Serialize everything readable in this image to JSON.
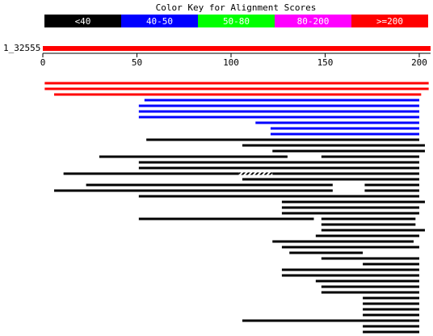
{
  "chart_data": {
    "type": "alignment",
    "title": "Color Key for Alignment Scores",
    "legend": [
      {
        "label": "<40",
        "color": "#000000"
      },
      {
        "label": "40-50",
        "color": "#0000ff"
      },
      {
        "label": "50-80",
        "color": "#00ff00"
      },
      {
        "label": "80-200",
        "color": "#ff00ff"
      },
      {
        "label": ">=200",
        "color": "#ff0000"
      }
    ],
    "query": {
      "name": "1_32555",
      "range": [
        0,
        206
      ],
      "color": "#ff0000"
    },
    "xlim": [
      0,
      206
    ],
    "xticks": [
      0,
      50,
      100,
      150,
      200
    ],
    "hits": [
      {
        "color": "#ff0000",
        "segments": [
          [
            1,
            205
          ]
        ]
      },
      {
        "color": "#ff0000",
        "segments": [
          [
            1,
            205
          ]
        ]
      },
      {
        "color": "#ff0000",
        "segments": [
          [
            6,
            201
          ]
        ]
      },
      {
        "color": "#0000ff",
        "segments": [
          [
            54,
            200
          ]
        ]
      },
      {
        "color": "#0000ff",
        "segments": [
          [
            51,
            200
          ]
        ]
      },
      {
        "color": "#0000ff",
        "segments": [
          [
            51,
            200
          ]
        ]
      },
      {
        "color": "#0000ff",
        "segments": [
          [
            51,
            200
          ]
        ]
      },
      {
        "color": "#0000ff",
        "segments": [
          [
            113,
            200
          ]
        ]
      },
      {
        "color": "#0000ff",
        "segments": [
          [
            121,
            200
          ]
        ]
      },
      {
        "color": "#0000ff",
        "segments": [
          [
            121,
            200
          ]
        ]
      },
      {
        "color": "#000000",
        "segments": [
          [
            55,
            200
          ]
        ]
      },
      {
        "color": "#000000",
        "segments": [
          [
            106,
            203
          ]
        ]
      },
      {
        "color": "#000000",
        "segments": [
          [
            122,
            203
          ]
        ]
      },
      {
        "color": "#000000",
        "segments": [
          [
            30,
            130
          ],
          [
            148,
            200
          ]
        ]
      },
      {
        "color": "#000000",
        "segments": [
          [
            51,
            200
          ]
        ]
      },
      {
        "color": "#000000",
        "segments": [
          [
            51,
            200
          ]
        ]
      },
      {
        "color": "#000000",
        "segments": [
          [
            11,
            104
          ],
          [
            122,
            200
          ]
        ],
        "hatched": [
          [
            104,
            122
          ]
        ]
      },
      {
        "color": "#000000",
        "segments": [
          [
            106,
            200
          ]
        ]
      },
      {
        "color": "#000000",
        "segments": [
          [
            23,
            154
          ],
          [
            171,
            200
          ]
        ]
      },
      {
        "color": "#000000",
        "segments": [
          [
            6,
            154
          ],
          [
            171,
            200
          ]
        ]
      },
      {
        "color": "#000000",
        "segments": [
          [
            51,
            200
          ]
        ]
      },
      {
        "color": "#000000",
        "segments": [
          [
            127,
            203
          ]
        ]
      },
      {
        "color": "#000000",
        "segments": [
          [
            127,
            200
          ]
        ]
      },
      {
        "color": "#000000",
        "segments": [
          [
            127,
            200
          ]
        ]
      },
      {
        "color": "#000000",
        "segments": [
          [
            51,
            144
          ],
          [
            148,
            198
          ]
        ]
      },
      {
        "color": "#000000",
        "segments": [
          [
            148,
            198
          ]
        ]
      },
      {
        "color": "#000000",
        "segments": [
          [
            148,
            203
          ]
        ]
      },
      {
        "color": "#000000",
        "segments": [
          [
            145,
            200
          ]
        ]
      },
      {
        "color": "#000000",
        "segments": [
          [
            122,
            197
          ]
        ]
      },
      {
        "color": "#000000",
        "segments": [
          [
            127,
            200
          ]
        ]
      },
      {
        "color": "#000000",
        "segments": [
          [
            131,
            170
          ]
        ]
      },
      {
        "color": "#000000",
        "segments": [
          [
            148,
            200
          ]
        ]
      },
      {
        "color": "#000000",
        "segments": [
          [
            170,
            200
          ]
        ]
      },
      {
        "color": "#000000",
        "segments": [
          [
            127,
            200
          ]
        ]
      },
      {
        "color": "#000000",
        "segments": [
          [
            127,
            200
          ]
        ]
      },
      {
        "color": "#000000",
        "segments": [
          [
            145,
            200
          ]
        ]
      },
      {
        "color": "#000000",
        "segments": [
          [
            148,
            200
          ]
        ]
      },
      {
        "color": "#000000",
        "segments": [
          [
            148,
            200
          ]
        ]
      },
      {
        "color": "#000000",
        "segments": [
          [
            170,
            200
          ]
        ]
      },
      {
        "color": "#000000",
        "segments": [
          [
            170,
            200
          ]
        ]
      },
      {
        "color": "#000000",
        "segments": [
          [
            170,
            200
          ]
        ]
      },
      {
        "color": "#000000",
        "segments": [
          [
            170,
            200
          ]
        ]
      },
      {
        "color": "#000000",
        "segments": [
          [
            106,
            200
          ]
        ]
      },
      {
        "color": "#000000",
        "segments": [
          [
            170,
            200
          ]
        ]
      },
      {
        "color": "#000000",
        "segments": [
          [
            170,
            200
          ]
        ]
      }
    ]
  }
}
